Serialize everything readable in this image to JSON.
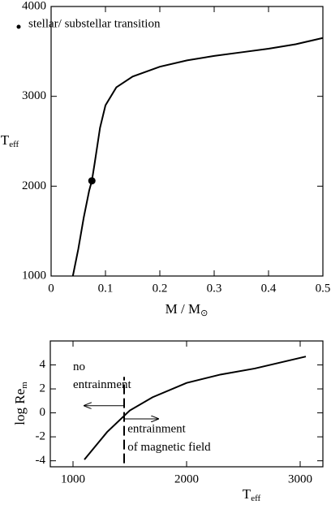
{
  "chart_data": [
    {
      "type": "line",
      "xlabel": {
        "main": "M / M",
        "sub": "⊙"
      },
      "ylabel": {
        "main": "T",
        "sub": "eff"
      },
      "xlim": [
        0,
        0.5
      ],
      "xticks": [
        0,
        0.1,
        0.2,
        0.3,
        0.4,
        0.5
      ],
      "ylim": [
        1000,
        4000
      ],
      "yticks": [
        1000,
        2000,
        3000,
        4000
      ],
      "series": [
        {
          "color": "#000000",
          "x": [
            0.04,
            0.05,
            0.06,
            0.07,
            0.075,
            0.08,
            0.09,
            0.1,
            0.12,
            0.15,
            0.2,
            0.25,
            0.3,
            0.35,
            0.4,
            0.45,
            0.5
          ],
          "values": [
            1000,
            1300,
            1650,
            1950,
            2060,
            2250,
            2650,
            2900,
            3100,
            3220,
            3330,
            3400,
            3450,
            3490,
            3530,
            3580,
            3650
          ]
        }
      ],
      "markers": {
        "name": "stellar/ substellar transition",
        "color": "#000000",
        "x": [
          0.075
        ],
        "values": [
          2060
        ]
      }
    },
    {
      "type": "line",
      "xlabel": {
        "main": "T",
        "sub": "eff"
      },
      "ylabel": {
        "main": "log Re",
        "sub": "m"
      },
      "xlim": [
        800,
        3200
      ],
      "xticks": [
        1000,
        2000,
        3000
      ],
      "ylim": [
        -4.5,
        6
      ],
      "yticks": [
        -4,
        -2,
        0,
        2,
        4
      ],
      "series": [
        {
          "color": "#000000",
          "x": [
            1100,
            1300,
            1500,
            1700,
            2000,
            2300,
            2600,
            3050
          ],
          "values": [
            -3.9,
            -1.6,
            0.2,
            1.3,
            2.5,
            3.2,
            3.7,
            4.7
          ]
        }
      ],
      "threshold": {
        "x": 1450,
        "y": [
          -4.2,
          3
        ]
      },
      "annotations": [
        {
          "lines": [
            "no",
            "entrainment"
          ],
          "x": 1000,
          "y": [
            3.8,
            2.3
          ],
          "arrow": [
            1450,
            1100,
            0.6
          ]
        },
        {
          "lines": [
            "entrainment",
            "of magnetic field"
          ],
          "x": 1480,
          "y": [
            -1.4,
            -2.9
          ],
          "arrow": [
            1450,
            1750,
            -0.5
          ]
        }
      ]
    }
  ]
}
